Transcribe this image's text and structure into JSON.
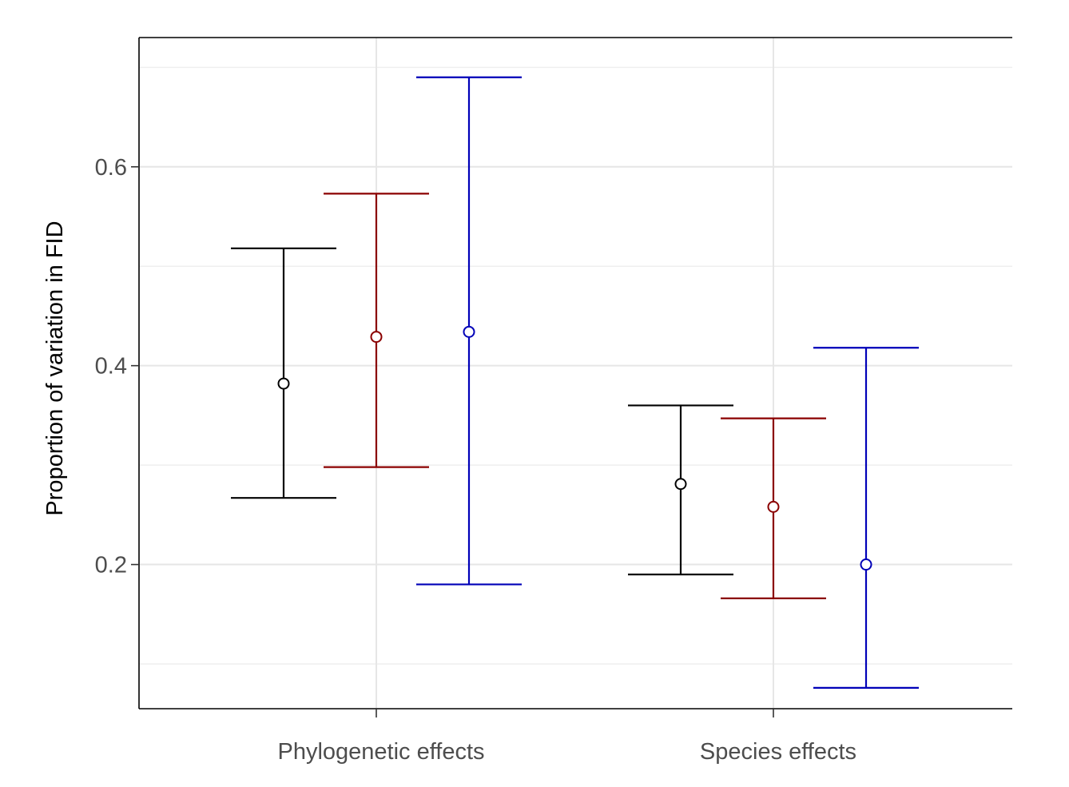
{
  "chart_data": {
    "type": "errorbar",
    "title": "",
    "xlabel": "",
    "ylabel": "Proportion of variation in FID",
    "categories": [
      "Phylogenetic effects",
      "Species effects"
    ],
    "yticks": [
      0.2,
      0.4,
      0.6
    ],
    "ytick_labels": [
      "0.2",
      "0.4",
      "0.6"
    ],
    "ylim": [
      0.055,
      0.73
    ],
    "grid": true,
    "legend": "none",
    "series": [
      {
        "color": "#000000",
        "points": [
          {
            "category": "Phylogenetic effects",
            "estimate": 0.382,
            "lower": 0.267,
            "upper": 0.518
          },
          {
            "category": "Species effects",
            "estimate": 0.281,
            "lower": 0.19,
            "upper": 0.36
          }
        ]
      },
      {
        "color": "#8b0000",
        "points": [
          {
            "category": "Phylogenetic effects",
            "estimate": 0.429,
            "lower": 0.298,
            "upper": 0.573
          },
          {
            "category": "Species effects",
            "estimate": 0.258,
            "lower": 0.166,
            "upper": 0.347
          }
        ]
      },
      {
        "color": "#0000b8",
        "points": [
          {
            "category": "Phylogenetic effects",
            "estimate": 0.434,
            "lower": 0.18,
            "upper": 0.69
          },
          {
            "category": "Species effects",
            "estimate": 0.2,
            "lower": 0.076,
            "upper": 0.418
          }
        ]
      }
    ]
  }
}
